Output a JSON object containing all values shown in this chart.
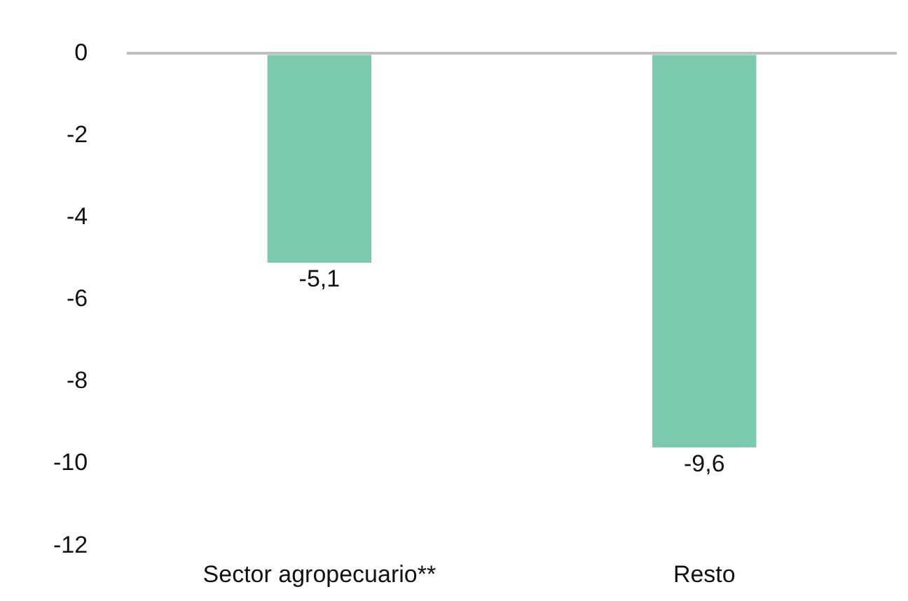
{
  "chart_data": {
    "type": "bar",
    "categories": [
      "Sector agropecuario**",
      "Resto"
    ],
    "values": [
      -5.1,
      -9.6
    ],
    "color": "#7ccaae",
    "value_labels": [
      "-5,1",
      "-9,6"
    ],
    "ylim": [
      -12,
      0
    ],
    "yticks": [
      0,
      -2,
      -4,
      -6,
      -8,
      -10,
      -12
    ],
    "legend": false
  }
}
